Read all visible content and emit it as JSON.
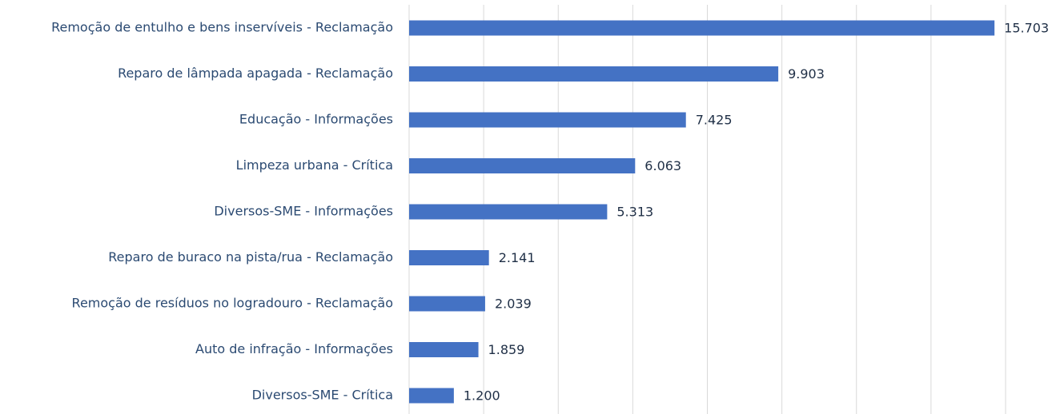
{
  "chart_data": {
    "type": "bar",
    "orientation": "horizontal",
    "categories": [
      "Remoção de entulho e bens inservíveis - Reclamação",
      "Reparo de lâmpada apagada - Reclamação",
      "Educação - Informações",
      "Limpeza urbana - Crítica",
      "Diversos-SME - Informações",
      "Reparo de buraco na pista/rua - Reclamação",
      "Remoção de resíduos no logradouro - Reclamação",
      "Auto de infração - Informações",
      "Diversos-SME - Crítica"
    ],
    "values": [
      15703,
      9903,
      7425,
      6063,
      5313,
      2141,
      2039,
      1859,
      1200
    ],
    "value_labels": [
      "15.703",
      "9.903",
      "7.425",
      "6.063",
      "5.313",
      "2.141",
      "2.039",
      "1.859",
      "1.200"
    ],
    "color": "#4472c4",
    "xlim": [
      0,
      16000
    ],
    "xticks": [
      0,
      2000,
      4000,
      6000,
      8000,
      10000,
      12000,
      14000,
      16000
    ],
    "grid": true
  }
}
